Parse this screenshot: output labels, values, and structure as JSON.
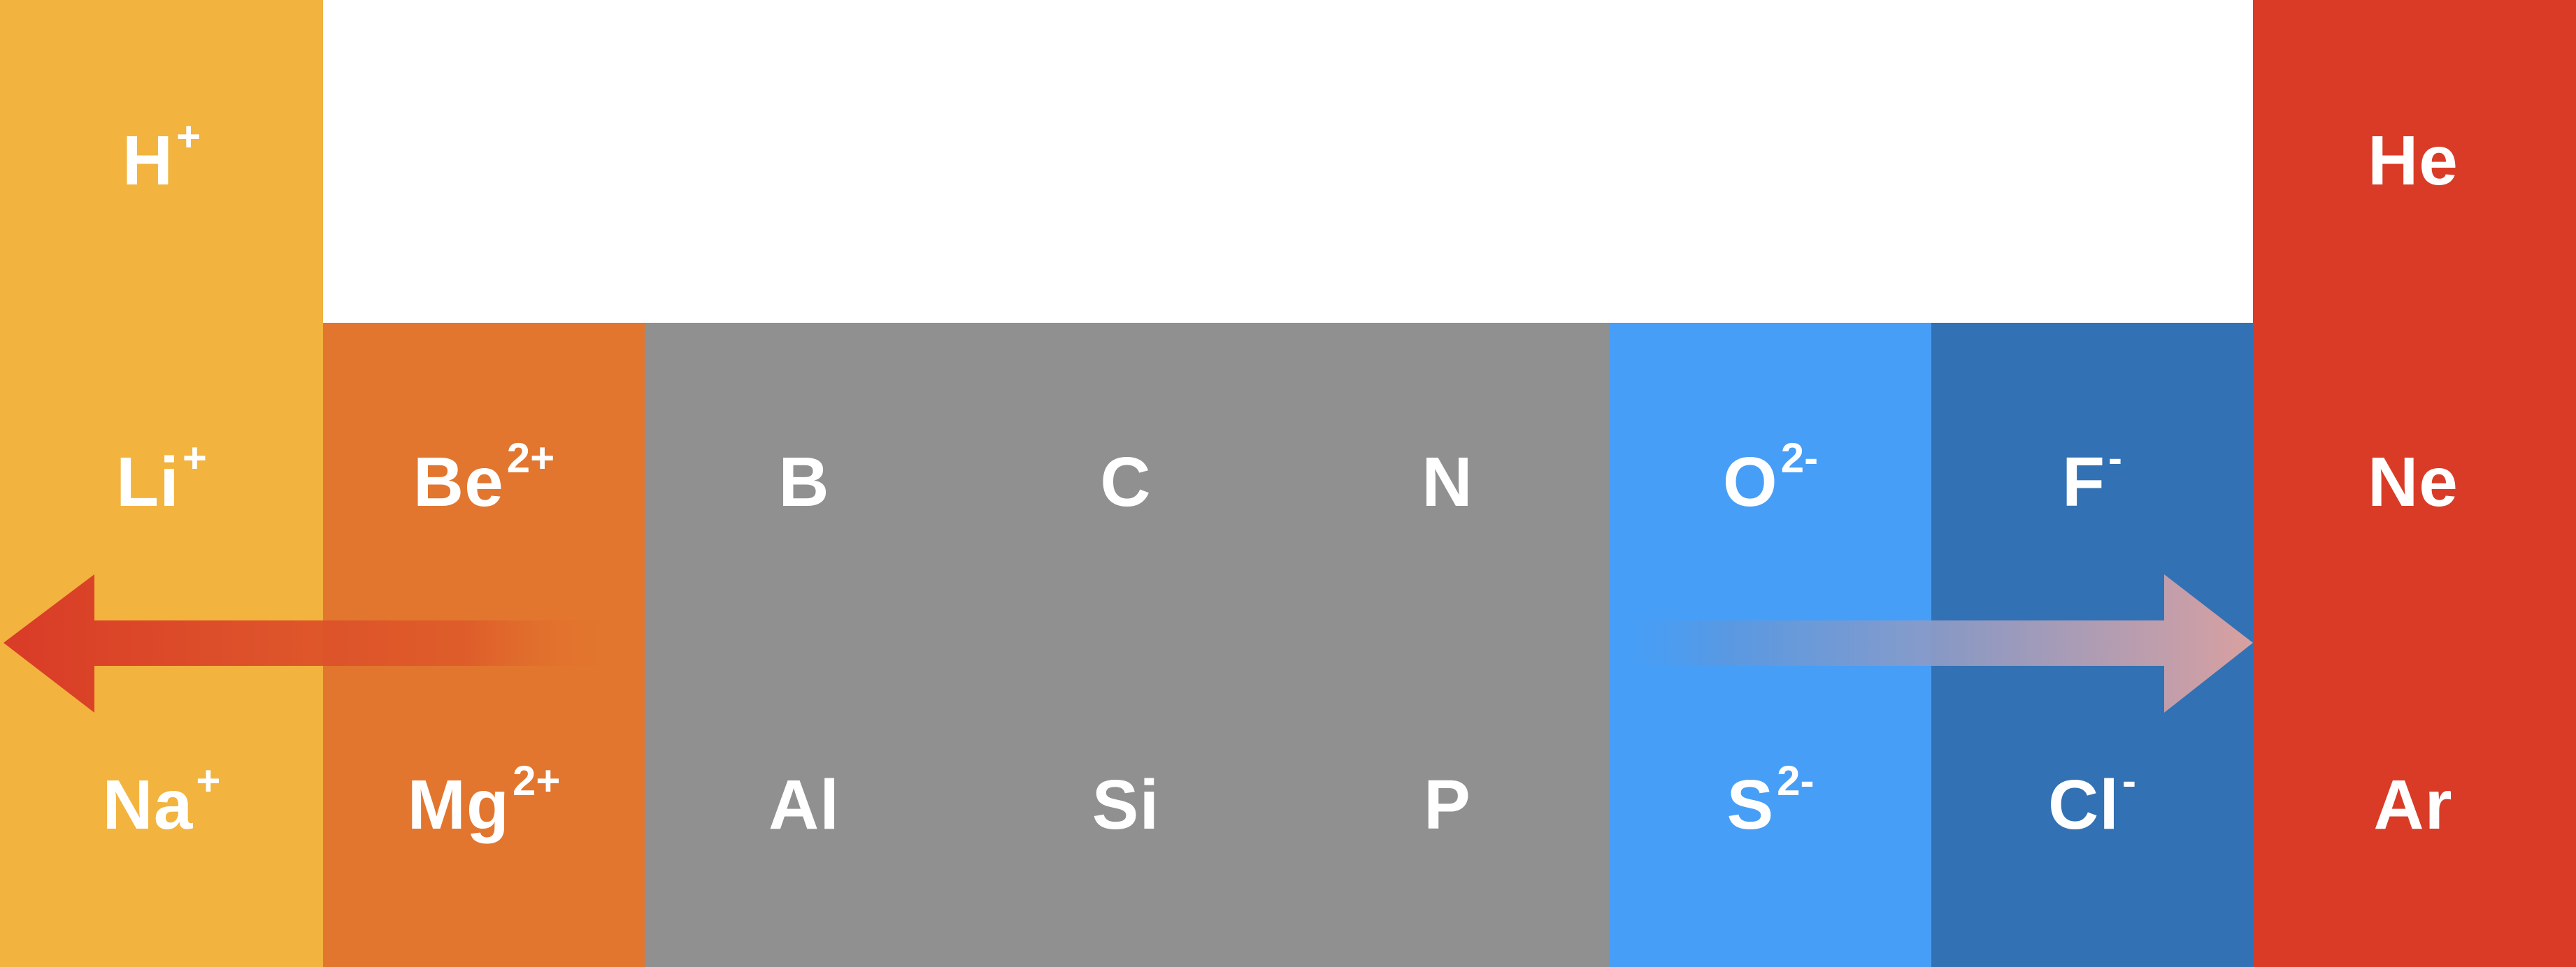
{
  "colors": {
    "group1": "#F2B33F",
    "group2": "#E2762E",
    "metalloid_nonmetal": "#909090",
    "group16": "#479EF6",
    "group17": "#3271B3",
    "noble_gas": "#D93B27",
    "arrow_left": "#D93B27",
    "arrow_right_start": "#4F9BEA",
    "arrow_right_end": "#D9A0A0"
  },
  "elements": {
    "H": {
      "symbol": "H",
      "charge": "+"
    },
    "He": {
      "symbol": "He",
      "charge": ""
    },
    "Li": {
      "symbol": "Li",
      "charge": "+"
    },
    "Be": {
      "symbol": "Be",
      "charge": "2+"
    },
    "B": {
      "symbol": "B",
      "charge": ""
    },
    "C": {
      "symbol": "C",
      "charge": ""
    },
    "N": {
      "symbol": "N",
      "charge": ""
    },
    "O": {
      "symbol": "O",
      "charge": "2-"
    },
    "F": {
      "symbol": "F",
      "charge": "-"
    },
    "Ne": {
      "symbol": "Ne",
      "charge": ""
    },
    "Na": {
      "symbol": "Na",
      "charge": "+"
    },
    "Mg": {
      "symbol": "Mg",
      "charge": "2+"
    },
    "Al": {
      "symbol": "Al",
      "charge": ""
    },
    "Si": {
      "symbol": "Si",
      "charge": ""
    },
    "P": {
      "symbol": "P",
      "charge": ""
    },
    "S": {
      "symbol": "S",
      "charge": "2-"
    },
    "Cl": {
      "symbol": "Cl",
      "charge": "-"
    },
    "Ar": {
      "symbol": "Ar",
      "charge": ""
    }
  }
}
